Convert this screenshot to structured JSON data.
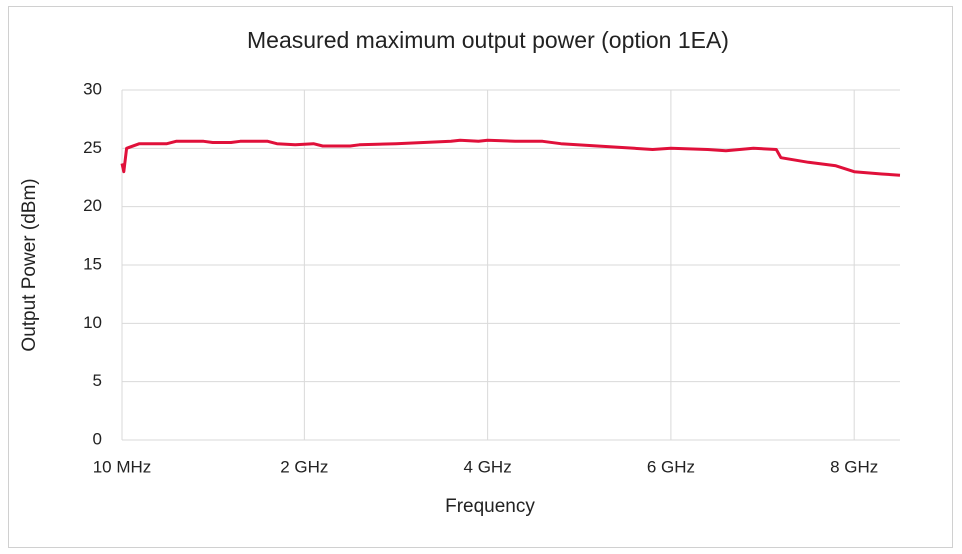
{
  "chart_data": {
    "type": "line",
    "title": "Measured maximum output power (option 1EA)",
    "xlabel": "Frequency",
    "ylabel": "Output Power (dBm)",
    "x": [
      0.01,
      0.03,
      0.06,
      0.2,
      0.5,
      0.6,
      0.9,
      1.0,
      1.2,
      1.3,
      1.6,
      1.7,
      1.9,
      2.1,
      2.2,
      2.5,
      2.6,
      3.0,
      3.3,
      3.6,
      3.7,
      3.9,
      4.0,
      4.3,
      4.6,
      4.8,
      5.2,
      5.6,
      5.8,
      6.0,
      6.4,
      6.6,
      6.9,
      7.15,
      7.2,
      7.5,
      7.8,
      8.0,
      8.3,
      8.5
    ],
    "series": [
      {
        "name": "Output power",
        "color": "#e0103a",
        "values": [
          23.7,
          23.0,
          25.0,
          25.4,
          25.4,
          25.6,
          25.6,
          25.5,
          25.5,
          25.6,
          25.6,
          25.4,
          25.3,
          25.4,
          25.2,
          25.2,
          25.3,
          25.4,
          25.5,
          25.6,
          25.7,
          25.6,
          25.7,
          25.6,
          25.6,
          25.4,
          25.2,
          25.0,
          24.9,
          25.0,
          24.9,
          24.8,
          25.0,
          24.9,
          24.2,
          23.8,
          23.5,
          23.0,
          22.8,
          22.7
        ]
      }
    ],
    "xlim": [
      0.01,
      8.5
    ],
    "xticks": [
      {
        "value": 0.01,
        "label": "10 MHz"
      },
      {
        "value": 2,
        "label": "2 GHz"
      },
      {
        "value": 4,
        "label": "4 GHz"
      },
      {
        "value": 6,
        "label": "6 GHz"
      },
      {
        "value": 8,
        "label": "8 GHz"
      }
    ],
    "ylim": [
      0,
      30
    ],
    "yticks": [
      0,
      5,
      10,
      15,
      20,
      25,
      30
    ],
    "grid": true
  }
}
